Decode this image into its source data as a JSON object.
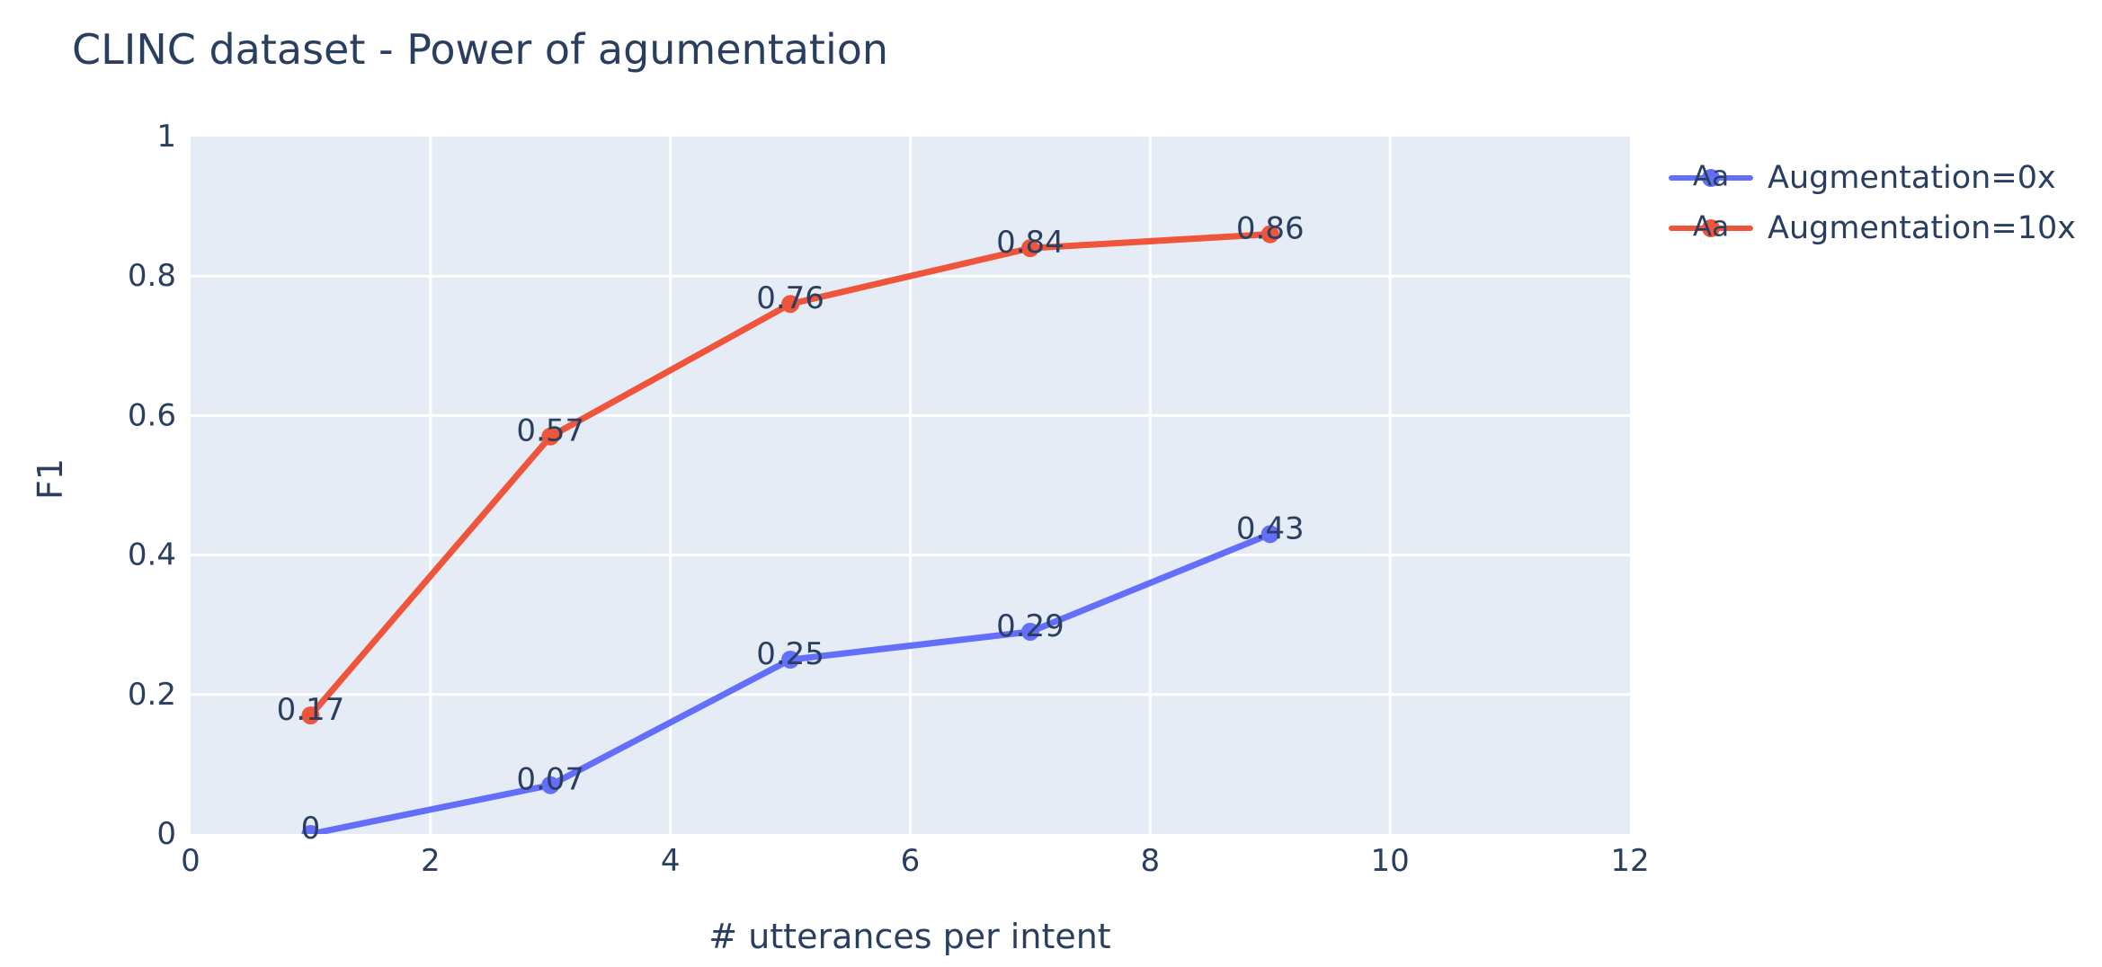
{
  "chart": {
    "title": "CLINC dataset - Power of agumentation",
    "xlabel": "# utterances per intent",
    "ylabel": "F1"
  },
  "chart_data": {
    "type": "line",
    "x": [
      1,
      3,
      5,
      7,
      9
    ],
    "series": [
      {
        "name": "Augmentation=0x",
        "color": "#636efa",
        "sample_text": "Aa",
        "values": [
          0,
          0.07,
          0.25,
          0.29,
          0.43
        ],
        "point_labels": [
          "0",
          "0.07",
          "0.25",
          "0.29",
          "0.43"
        ]
      },
      {
        "name": "Augmentation=10x",
        "color": "#ef553b",
        "sample_text": "Aa",
        "values": [
          0.17,
          0.57,
          0.76,
          0.84,
          0.86
        ],
        "point_labels": [
          "0.17",
          "0.57",
          "0.76",
          "0.84",
          "0.86"
        ]
      }
    ],
    "xlim": [
      0,
      12
    ],
    "ylim": [
      0,
      1
    ],
    "x_tick_labels": [
      "0",
      "2",
      "4",
      "6",
      "8",
      "10",
      "12"
    ],
    "y_tick_labels": [
      "0",
      "0.2",
      "0.4",
      "0.6",
      "0.8",
      "1"
    ],
    "grid": true,
    "legend_position": "right-top",
    "colors": {
      "plot_bg": "#e5ecf6",
      "grid": "#ffffff",
      "font": "#2a3f5f",
      "paper_bg": "#ffffff"
    }
  }
}
